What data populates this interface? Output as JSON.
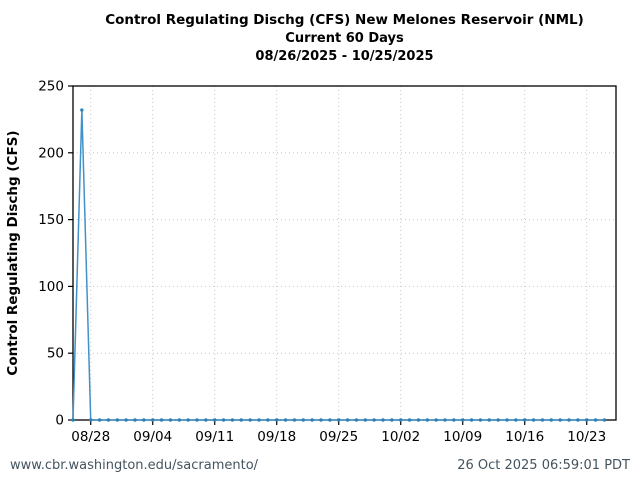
{
  "header": {
    "title": "Control Regulating Dischg (CFS) New Melones Reservoir (NML)",
    "subtitle": "Current 60 Days",
    "date_range": "08/26/2025 - 10/25/2025"
  },
  "footer": {
    "url": "www.cbr.washington.edu/sacramento/",
    "timestamp": "26 Oct 2025 06:59:01 PDT"
  },
  "chart_data": {
    "type": "line",
    "title": "Control Regulating Dischg (CFS) New Melones Reservoir (NML)",
    "subtitle": "Current 60 Days",
    "date_range": "08/26/2025 - 10/25/2025",
    "xlabel": "",
    "ylabel": "Control Regulating Dischg (CFS)",
    "ylim": [
      0,
      250
    ],
    "yticks": [
      0,
      50,
      100,
      150,
      200,
      250
    ],
    "xtick_labels": [
      "08/28",
      "09/04",
      "09/11",
      "09/18",
      "09/25",
      "10/02",
      "10/09",
      "10/16",
      "10/23"
    ],
    "grid": "dotted",
    "legend_position": "none",
    "line_color": "#4191c9",
    "marker_color": "#2e80ba",
    "grid_color": "#c9c9c9",
    "axis_color": "#000000",
    "x": [
      "08/26",
      "08/27",
      "08/28",
      "08/29",
      "08/30",
      "08/31",
      "09/01",
      "09/02",
      "09/03",
      "09/04",
      "09/05",
      "09/06",
      "09/07",
      "09/08",
      "09/09",
      "09/10",
      "09/11",
      "09/12",
      "09/13",
      "09/14",
      "09/15",
      "09/16",
      "09/17",
      "09/18",
      "09/19",
      "09/20",
      "09/21",
      "09/22",
      "09/23",
      "09/24",
      "09/25",
      "09/26",
      "09/27",
      "09/28",
      "09/29",
      "09/30",
      "10/01",
      "10/02",
      "10/03",
      "10/04",
      "10/05",
      "10/06",
      "10/07",
      "10/08",
      "10/09",
      "10/10",
      "10/11",
      "10/12",
      "10/13",
      "10/14",
      "10/15",
      "10/16",
      "10/17",
      "10/18",
      "10/19",
      "10/20",
      "10/21",
      "10/22",
      "10/23",
      "10/24",
      "10/25"
    ],
    "series": [
      {
        "name": "Control Regulating Dischg (CFS)",
        "values": [
          0,
          232,
          0,
          0,
          0,
          0,
          0,
          0,
          0,
          0,
          0,
          0,
          0,
          0,
          0,
          0,
          0,
          0,
          0,
          0,
          0,
          0,
          0,
          0,
          0,
          0,
          0,
          0,
          0,
          0,
          0,
          0,
          0,
          0,
          0,
          0,
          0,
          0,
          0,
          0,
          0,
          0,
          0,
          0,
          0,
          0,
          0,
          0,
          0,
          0,
          0,
          0,
          0,
          0,
          0,
          0,
          0,
          0,
          0,
          0,
          0
        ]
      }
    ]
  }
}
